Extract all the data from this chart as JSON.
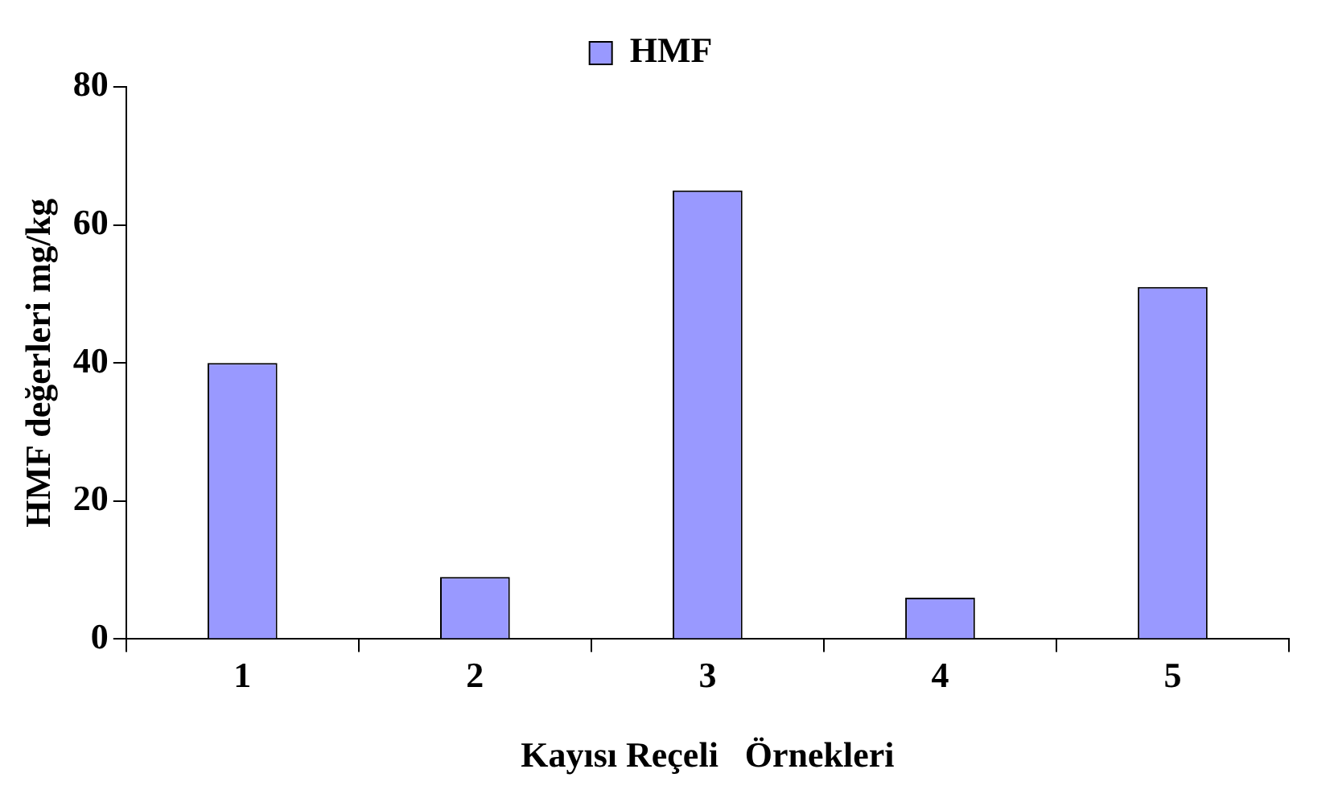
{
  "chart_data": {
    "type": "bar",
    "xlabel": "Kayısı Reçeli   Örnekleri",
    "ylabel": "HMF değerleri mg/kg",
    "categories": [
      "1",
      "2",
      "3",
      "4",
      "5"
    ],
    "series": [
      {
        "name": "HMF",
        "color": "#9999ff",
        "values": [
          40,
          9,
          65,
          6,
          51
        ]
      }
    ],
    "ylim": [
      0,
      80
    ],
    "yticks": [
      0,
      20,
      40,
      60,
      80
    ],
    "grid": false,
    "legend": "top"
  }
}
